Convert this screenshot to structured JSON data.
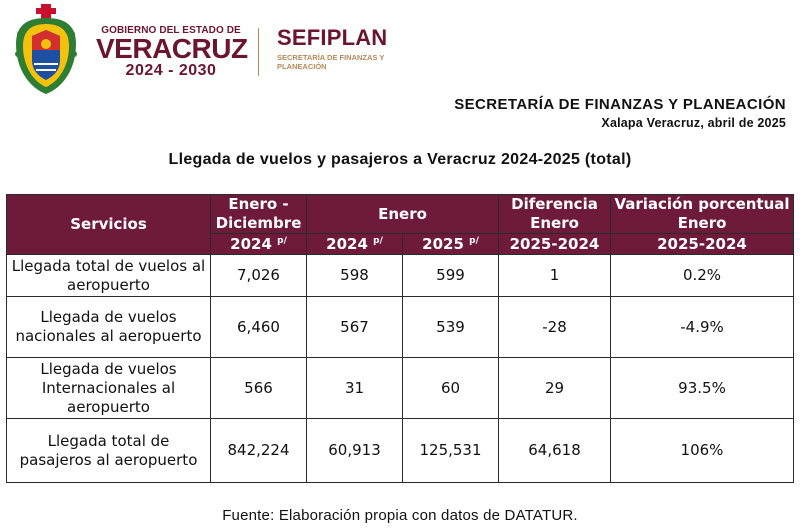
{
  "header": {
    "gov_line1": "GOBIERNO DEL ESTADO DE",
    "gov_line2": "VERACRUZ",
    "gov_years": "2024 - 2030",
    "sefiplan_name": "SEFIPLAN",
    "sefiplan_sub": "SECRETARÍA DE FINANZAS Y PLANEACIÓN",
    "office_title": "SECRETARÍA DE FINANZAS Y PLANEACIÓN",
    "place_date": "Xalapa Veracruz, abril de 2025"
  },
  "table_title": "Llegada de vuelos y pasajeros a Veracruz 2024-2025 (total)",
  "table": {
    "headers": {
      "servicios": "Servicios",
      "ene_dic": "Enero - Diciembre",
      "ene_dic_year": "2024",
      "enero": "Enero",
      "enero_2024": "2024",
      "enero_2025": "2025",
      "prelim_mark": "p/",
      "diferencia": "Diferencia Enero",
      "diferencia_years": "2025-2024",
      "variacion": "Variación porcentual Enero",
      "variacion_years": "2025-2024"
    },
    "rows": [
      {
        "servicio": "Llegada total de vuelos al aeropuerto",
        "ene_dic_2024": "7,026",
        "enero_2024": "598",
        "enero_2025": "599",
        "diferencia": "1",
        "variacion": "0.2%"
      },
      {
        "servicio": "Llegada de vuelos nacionales al aeropuerto",
        "ene_dic_2024": "6,460",
        "enero_2024": "567",
        "enero_2025": "539",
        "diferencia": "-28",
        "variacion": "-4.9%"
      },
      {
        "servicio": "Llegada de vuelos Internacionales al aeropuerto",
        "ene_dic_2024": "566",
        "enero_2024": "31",
        "enero_2025": "60",
        "diferencia": "29",
        "variacion": "93.5%"
      },
      {
        "servicio": "Llegada total de pasajeros al aeropuerto",
        "ene_dic_2024": "842,224",
        "enero_2024": "60,913",
        "enero_2025": "125,531",
        "diferencia": "64,618",
        "variacion": "106%"
      }
    ]
  },
  "source": "Fuente: Elaboración propia con datos de DATATUR.",
  "colors": {
    "header_bg": "#6e1b3b",
    "brand_wine": "#6b1530",
    "brand_gold": "#b58a5a"
  }
}
